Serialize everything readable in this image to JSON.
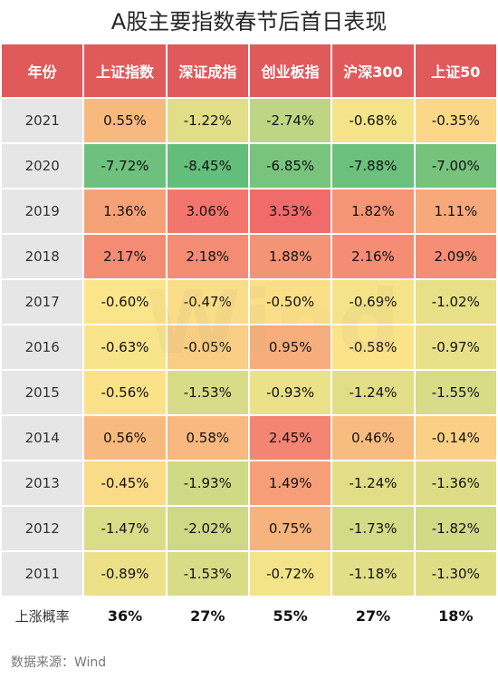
{
  "title": "A股主要指数春节后首日表现",
  "source": "数据来源：Wind",
  "watermark": "Wind",
  "chart_data": {
    "type": "table",
    "title": "A股主要指数春节后首日表现",
    "columns": [
      "年份",
      "上证指数",
      "深证成指",
      "创业板指",
      "沪深300",
      "上证50"
    ],
    "rows": [
      {
        "year": "2021",
        "values": [
          0.55,
          -1.22,
          -2.74,
          -0.68,
          -0.35
        ],
        "labels": [
          "0.55%",
          "-1.22%",
          "-2.74%",
          "-0.68%",
          "-0.35%"
        ]
      },
      {
        "year": "2020",
        "values": [
          -7.72,
          -8.45,
          -6.85,
          -7.88,
          -7.0
        ],
        "labels": [
          "-7.72%",
          "-8.45%",
          "-6.85%",
          "-7.88%",
          "-7.00%"
        ]
      },
      {
        "year": "2019",
        "values": [
          1.36,
          3.06,
          3.53,
          1.82,
          1.11
        ],
        "labels": [
          "1.36%",
          "3.06%",
          "3.53%",
          "1.82%",
          "1.11%"
        ]
      },
      {
        "year": "2018",
        "values": [
          2.17,
          2.18,
          1.88,
          2.16,
          2.09
        ],
        "labels": [
          "2.17%",
          "2.18%",
          "1.88%",
          "2.16%",
          "2.09%"
        ]
      },
      {
        "year": "2017",
        "values": [
          -0.6,
          -0.47,
          -0.5,
          -0.69,
          -1.02
        ],
        "labels": [
          "-0.60%",
          "-0.47%",
          "-0.50%",
          "-0.69%",
          "-1.02%"
        ]
      },
      {
        "year": "2016",
        "values": [
          -0.63,
          -0.05,
          0.95,
          -0.58,
          -0.97
        ],
        "labels": [
          "-0.63%",
          "-0.05%",
          "0.95%",
          "-0.58%",
          "-0.97%"
        ]
      },
      {
        "year": "2015",
        "values": [
          -0.56,
          -1.53,
          -0.93,
          -1.24,
          -1.55
        ],
        "labels": [
          "-0.56%",
          "-1.53%",
          "-0.93%",
          "-1.24%",
          "-1.55%"
        ]
      },
      {
        "year": "2014",
        "values": [
          0.56,
          0.58,
          2.45,
          0.46,
          -0.14
        ],
        "labels": [
          "0.56%",
          "0.58%",
          "2.45%",
          "0.46%",
          "-0.14%"
        ]
      },
      {
        "year": "2013",
        "values": [
          -0.45,
          -1.93,
          1.49,
          -1.24,
          -1.36
        ],
        "labels": [
          "-0.45%",
          "-1.93%",
          "1.49%",
          "-1.24%",
          "-1.36%"
        ]
      },
      {
        "year": "2012",
        "values": [
          -1.47,
          -2.02,
          0.75,
          -1.73,
          -1.82
        ],
        "labels": [
          "-1.47%",
          "-2.02%",
          "0.75%",
          "-1.73%",
          "-1.82%"
        ]
      },
      {
        "year": "2011",
        "values": [
          -0.89,
          -1.53,
          -0.72,
          -1.18,
          -1.3
        ],
        "labels": [
          "-0.89%",
          "-1.53%",
          "-0.72%",
          "-1.18%",
          "-1.30%"
        ]
      }
    ],
    "footer": {
      "label": "上涨概率",
      "values": [
        "36%",
        "27%",
        "55%",
        "27%",
        "18%"
      ]
    },
    "colors": {
      "header": "#e05a5c",
      "year_cell": "#e6e6e6",
      "max": "#f26b6b",
      "mid": "#fbe58a",
      "min": "#63be7b"
    }
  }
}
